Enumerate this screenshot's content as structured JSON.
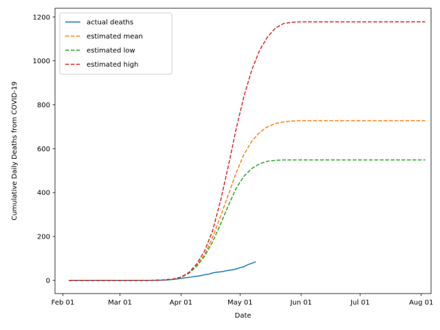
{
  "chart_data": {
    "type": "line",
    "xlabel": "Date",
    "ylabel": "Cumulative Daily Deaths from COVID-19",
    "x_axis_type": "date",
    "xlim": [
      "2020-01-28",
      "2020-08-06"
    ],
    "ylim": [
      -60,
      1240
    ],
    "x_ticks": [
      {
        "date": "2020-02-01",
        "label": "Feb 01"
      },
      {
        "date": "2020-03-01",
        "label": "Mar 01"
      },
      {
        "date": "2020-04-01",
        "label": "Apr 01"
      },
      {
        "date": "2020-05-01",
        "label": "May 01"
      },
      {
        "date": "2020-06-01",
        "label": "Jun 01"
      },
      {
        "date": "2020-07-01",
        "label": "Jul 01"
      },
      {
        "date": "2020-08-01",
        "label": "Aug 01"
      }
    ],
    "y_ticks": [
      0,
      200,
      400,
      600,
      800,
      1000,
      1200
    ],
    "grid": false,
    "legend_position": "upper-left",
    "series": [
      {
        "name": "actual deaths",
        "color": "#1f77b4",
        "style": "solid",
        "points": [
          [
            "2020-02-04",
            0
          ],
          [
            "2020-03-20",
            0
          ],
          [
            "2020-03-25",
            2
          ],
          [
            "2020-03-30",
            6
          ],
          [
            "2020-04-03",
            12
          ],
          [
            "2020-04-06",
            15
          ],
          [
            "2020-04-08",
            18
          ],
          [
            "2020-04-10",
            20
          ],
          [
            "2020-04-13",
            26
          ],
          [
            "2020-04-15",
            28
          ],
          [
            "2020-04-17",
            34
          ],
          [
            "2020-04-19",
            37
          ],
          [
            "2020-04-22",
            40
          ],
          [
            "2020-04-24",
            44
          ],
          [
            "2020-04-27",
            48
          ],
          [
            "2020-04-29",
            52
          ],
          [
            "2020-05-01",
            58
          ],
          [
            "2020-05-03",
            63
          ],
          [
            "2020-05-05",
            72
          ],
          [
            "2020-05-07",
            78
          ],
          [
            "2020-05-09",
            85
          ]
        ]
      },
      {
        "name": "estimated mean",
        "color": "#ff7f0e",
        "style": "dashed",
        "points": [
          [
            "2020-02-04",
            0
          ],
          [
            "2020-03-15",
            0
          ],
          [
            "2020-03-23",
            2
          ],
          [
            "2020-03-28",
            6
          ],
          [
            "2020-04-01",
            14
          ],
          [
            "2020-04-05",
            33
          ],
          [
            "2020-04-09",
            68
          ],
          [
            "2020-04-13",
            118
          ],
          [
            "2020-04-17",
            195
          ],
          [
            "2020-04-21",
            290
          ],
          [
            "2020-04-25",
            390
          ],
          [
            "2020-04-29",
            490
          ],
          [
            "2020-05-03",
            575
          ],
          [
            "2020-05-07",
            635
          ],
          [
            "2020-05-11",
            675
          ],
          [
            "2020-05-15",
            700
          ],
          [
            "2020-05-19",
            715
          ],
          [
            "2020-05-23",
            722
          ],
          [
            "2020-05-27",
            726
          ],
          [
            "2020-06-01",
            728
          ],
          [
            "2020-08-03",
            728
          ]
        ]
      },
      {
        "name": "estimated low",
        "color": "#2ca02c",
        "style": "dashed",
        "points": [
          [
            "2020-02-04",
            0
          ],
          [
            "2020-03-15",
            0
          ],
          [
            "2020-03-23",
            2
          ],
          [
            "2020-03-28",
            6
          ],
          [
            "2020-04-01",
            14
          ],
          [
            "2020-04-05",
            32
          ],
          [
            "2020-04-09",
            65
          ],
          [
            "2020-04-13",
            110
          ],
          [
            "2020-04-17",
            175
          ],
          [
            "2020-04-21",
            255
          ],
          [
            "2020-04-25",
            340
          ],
          [
            "2020-04-29",
            420
          ],
          [
            "2020-05-03",
            475
          ],
          [
            "2020-05-07",
            510
          ],
          [
            "2020-05-11",
            532
          ],
          [
            "2020-05-15",
            543
          ],
          [
            "2020-05-19",
            547
          ],
          [
            "2020-05-23",
            549
          ],
          [
            "2020-06-01",
            549
          ],
          [
            "2020-08-03",
            549
          ]
        ]
      },
      {
        "name": "estimated high",
        "color": "#d62728",
        "style": "dashed",
        "points": [
          [
            "2020-02-04",
            0
          ],
          [
            "2020-03-15",
            0
          ],
          [
            "2020-03-23",
            2
          ],
          [
            "2020-03-28",
            6
          ],
          [
            "2020-04-01",
            15
          ],
          [
            "2020-04-05",
            36
          ],
          [
            "2020-04-09",
            75
          ],
          [
            "2020-04-13",
            135
          ],
          [
            "2020-04-17",
            225
          ],
          [
            "2020-04-21",
            360
          ],
          [
            "2020-04-25",
            520
          ],
          [
            "2020-04-29",
            690
          ],
          [
            "2020-05-03",
            840
          ],
          [
            "2020-05-07",
            960
          ],
          [
            "2020-05-11",
            1050
          ],
          [
            "2020-05-15",
            1110
          ],
          [
            "2020-05-19",
            1150
          ],
          [
            "2020-05-23",
            1170
          ],
          [
            "2020-05-27",
            1176
          ],
          [
            "2020-06-01",
            1178
          ],
          [
            "2020-08-03",
            1178
          ]
        ]
      }
    ]
  }
}
